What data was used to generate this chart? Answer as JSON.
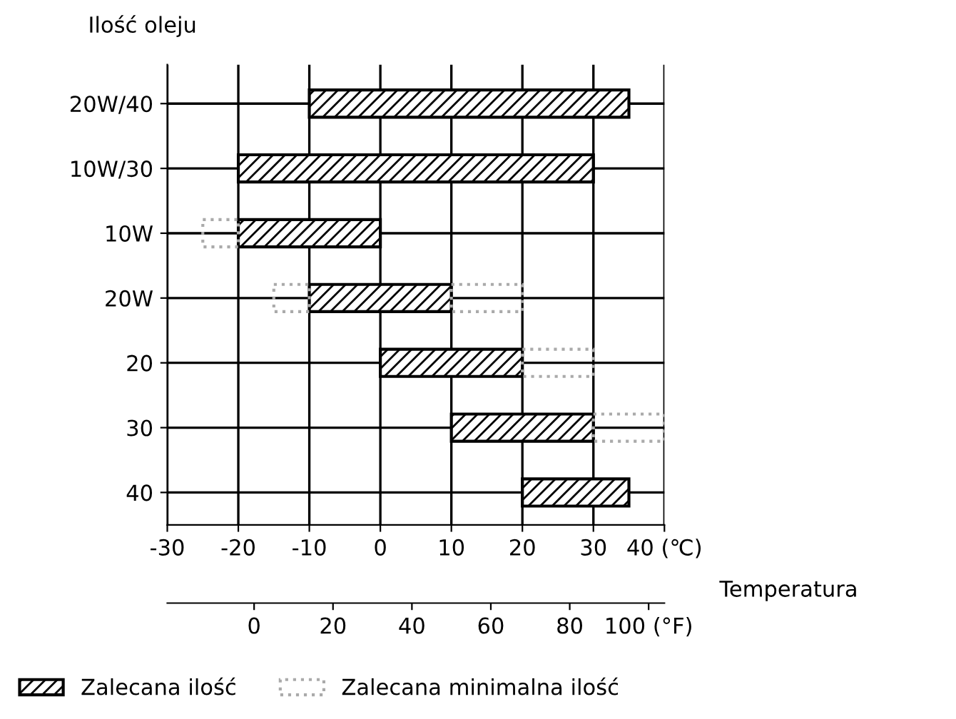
{
  "chart_data": {
    "type": "bar",
    "orientation": "horizontal",
    "ylabel": "Ilość oleju",
    "xlabel": "Temperatura",
    "categories": [
      "20W/40",
      "10W/30",
      "10W",
      "20W",
      "20",
      "30",
      "40"
    ],
    "series": [
      {
        "name": "Zalecana ilość",
        "color": "#000000",
        "line_style": "solid",
        "base": [
          -10,
          -20,
          -20,
          -10,
          0,
          10,
          20
        ],
        "values": [
          45,
          50,
          20,
          20,
          20,
          20,
          15
        ]
      },
      {
        "name": "Zalecana minimalna ilość",
        "color": "#aaaaaa",
        "line_style": "dotted",
        "base": [
          null,
          null,
          -25,
          -15,
          null,
          null,
          null
        ],
        "values": [
          null,
          null,
          5,
          5,
          null,
          null,
          null
        ]
      },
      {
        "color": "#aaaaaa",
        "line_style": "dotted",
        "base": [
          null,
          null,
          null,
          10,
          20,
          30,
          null
        ],
        "values": [
          null,
          null,
          null,
          10,
          10,
          10,
          null
        ]
      }
    ],
    "xlim": [
      -30,
      40
    ],
    "xticks": [
      -30,
      -20,
      -10,
      0,
      10,
      20,
      30,
      {
        "value": 40,
        "label": "40 (℃)"
      }
    ],
    "x2lim": [
      -22,
      104
    ],
    "x2ticks": [
      0,
      20,
      40,
      60,
      80,
      {
        "value": 100,
        "label": "100 (°F)"
      }
    ],
    "grid": true,
    "legend": "bottom"
  }
}
